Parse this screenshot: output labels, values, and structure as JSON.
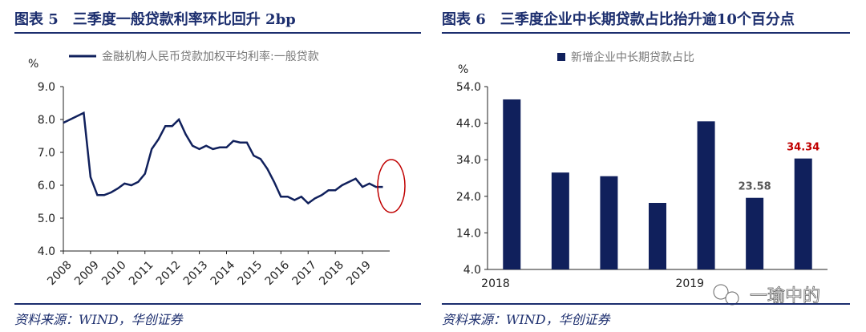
{
  "left": {
    "title": "图表 5　三季度一般贷款利率环比回升 2bp",
    "source": "资料来源：WIND，华创证券"
  },
  "right": {
    "title": "图表 6　三季度企业中长期贷款占比抬升逾10个百分点",
    "source": "资料来源：WIND，华创证券"
  },
  "watermark": "一瑜中的",
  "colors": {
    "navy": "#10205c",
    "red": "#c00000",
    "title": "#1c2e6e"
  },
  "chart_data": [
    {
      "type": "line",
      "unit_label": "%",
      "legend": "金融机构人民币贷款加权平均利率:一般贷款",
      "ylim": [
        4.0,
        9.0
      ],
      "yticks": [
        "9.0",
        "8.0",
        "7.0",
        "6.0",
        "5.0",
        "4.0"
      ],
      "xticks": [
        "2008",
        "2009",
        "2010",
        "2011",
        "2012",
        "2013",
        "2014",
        "2015",
        "2016",
        "2017",
        "2018",
        "2019"
      ],
      "x": [
        2008.0,
        2008.75,
        2009.0,
        2009.25,
        2009.5,
        2009.75,
        2010.0,
        2010.25,
        2010.5,
        2010.75,
        2011.0,
        2011.25,
        2011.5,
        2011.75,
        2012.0,
        2012.25,
        2012.5,
        2012.75,
        2013.0,
        2013.25,
        2013.5,
        2013.75,
        2014.0,
        2014.25,
        2014.5,
        2014.75,
        2015.0,
        2015.25,
        2015.5,
        2015.75,
        2016.0,
        2016.25,
        2016.5,
        2016.75,
        2017.0,
        2017.25,
        2017.5,
        2017.75,
        2018.0,
        2018.25,
        2018.5,
        2018.75,
        2019.0,
        2019.25,
        2019.5,
        2019.75
      ],
      "y": [
        7.9,
        8.2,
        6.25,
        5.7,
        5.7,
        5.78,
        5.9,
        6.05,
        6.0,
        6.1,
        6.35,
        7.1,
        7.4,
        7.8,
        7.8,
        8.0,
        7.55,
        7.2,
        7.1,
        7.2,
        7.1,
        7.15,
        7.15,
        7.35,
        7.3,
        7.3,
        6.9,
        6.8,
        6.5,
        6.1,
        5.65,
        5.65,
        5.55,
        5.65,
        5.45,
        5.6,
        5.7,
        5.85,
        5.85,
        6.0,
        6.1,
        6.2,
        5.95,
        6.05,
        5.95,
        5.95
      ],
      "annotation": "red ellipse highlighting latest values"
    },
    {
      "type": "bar",
      "unit_label": "%",
      "legend": "新增企业中长期贷款占比",
      "ylim": [
        4.0,
        54.0
      ],
      "yticks": [
        "54.0",
        "44.0",
        "34.0",
        "24.0",
        "14.0",
        "4.0"
      ],
      "xticks": [
        "2018",
        "2019"
      ],
      "values": [
        50.5,
        30.5,
        29.5,
        22.2,
        44.5,
        23.58,
        34.34
      ],
      "data_labels": [
        {
          "index": 5,
          "text": "23.58",
          "color": "#595959"
        },
        {
          "index": 6,
          "text": "34.34",
          "color": "#c00000"
        }
      ]
    }
  ]
}
